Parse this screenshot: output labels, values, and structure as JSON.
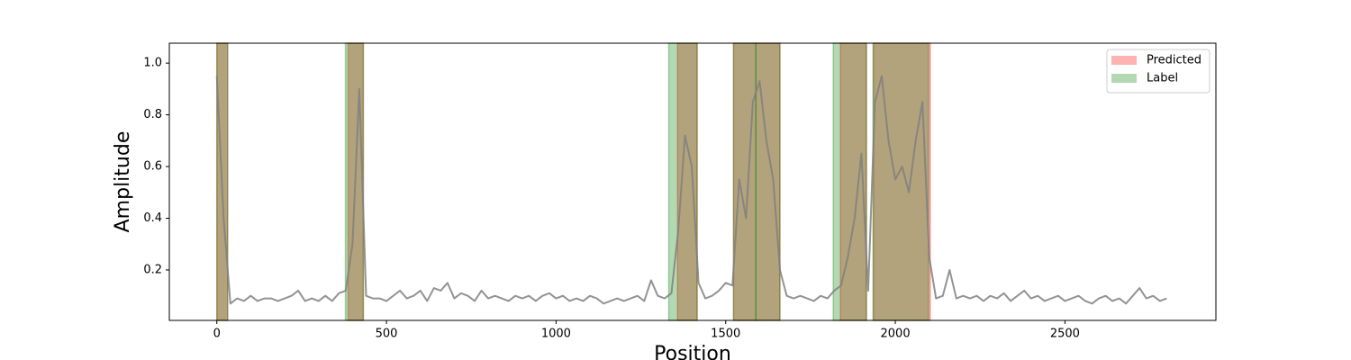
{
  "chart_data": {
    "type": "line",
    "xlabel": "Position",
    "ylabel": "Amplitude",
    "xlim": [
      -140,
      2945
    ],
    "ylim": [
      0.005,
      1.077
    ],
    "xticks": [
      0,
      500,
      1000,
      1500,
      2000,
      2500
    ],
    "yticks": [
      0.2,
      0.4,
      0.6,
      0.8,
      {
        "value": 1,
        "label": "1.0"
      }
    ],
    "legend": "upper right",
    "spans": [
      {
        "name": "Predicted",
        "color": "#ff0000",
        "alpha": 0.3,
        "ranges": [
          [
            0,
            32
          ],
          [
            387,
            432
          ],
          [
            1358,
            1416
          ],
          [
            1523,
            1660
          ],
          [
            1838,
            1915
          ],
          [
            1936,
            2103
          ]
        ]
      },
      {
        "name": "Label",
        "color": "#008000",
        "alpha": 0.3,
        "ranges": [
          [
            0,
            32
          ],
          [
            379,
            432
          ],
          [
            1332,
            1416
          ],
          [
            1523,
            1589
          ],
          [
            1589,
            1660
          ],
          [
            1817,
            1915
          ],
          [
            1934,
            2098
          ]
        ]
      }
    ],
    "line": {
      "color": "#808080",
      "alpha": 0.85,
      "x": [
        0,
        20,
        40,
        60,
        80,
        100,
        120,
        140,
        160,
        180,
        200,
        220,
        240,
        260,
        280,
        300,
        320,
        340,
        360,
        380,
        400,
        420,
        440,
        460,
        480,
        500,
        520,
        540,
        560,
        580,
        600,
        620,
        640,
        660,
        680,
        700,
        720,
        740,
        760,
        780,
        800,
        820,
        840,
        860,
        880,
        900,
        920,
        940,
        960,
        980,
        1000,
        1020,
        1040,
        1060,
        1080,
        1100,
        1120,
        1140,
        1160,
        1180,
        1200,
        1220,
        1240,
        1260,
        1280,
        1300,
        1320,
        1340,
        1360,
        1380,
        1400,
        1420,
        1440,
        1460,
        1480,
        1500,
        1520,
        1540,
        1560,
        1580,
        1600,
        1620,
        1640,
        1660,
        1680,
        1700,
        1720,
        1740,
        1760,
        1780,
        1800,
        1820,
        1840,
        1860,
        1880,
        1900,
        1920,
        1940,
        1960,
        1980,
        2000,
        2020,
        2040,
        2060,
        2080,
        2100,
        2120,
        2140,
        2160,
        2180,
        2200,
        2220,
        2240,
        2260,
        2280,
        2300,
        2320,
        2340,
        2360,
        2380,
        2400,
        2420,
        2440,
        2460,
        2480,
        2500,
        2520,
        2540,
        2560,
        2580,
        2600,
        2620,
        2640,
        2660,
        2680,
        2700,
        2720,
        2740,
        2760,
        2780,
        2800
      ],
      "values": [
        0.95,
        0.4,
        0.07,
        0.09,
        0.08,
        0.1,
        0.08,
        0.09,
        0.09,
        0.08,
        0.09,
        0.1,
        0.12,
        0.08,
        0.09,
        0.08,
        0.1,
        0.08,
        0.11,
        0.12,
        0.3,
        0.9,
        0.1,
        0.09,
        0.09,
        0.08,
        0.1,
        0.12,
        0.09,
        0.1,
        0.12,
        0.08,
        0.13,
        0.12,
        0.15,
        0.09,
        0.11,
        0.1,
        0.08,
        0.12,
        0.09,
        0.1,
        0.09,
        0.08,
        0.1,
        0.09,
        0.1,
        0.08,
        0.1,
        0.11,
        0.09,
        0.1,
        0.08,
        0.09,
        0.08,
        0.1,
        0.09,
        0.07,
        0.08,
        0.09,
        0.08,
        0.09,
        0.1,
        0.08,
        0.16,
        0.1,
        0.09,
        0.11,
        0.35,
        0.72,
        0.6,
        0.15,
        0.09,
        0.1,
        0.12,
        0.15,
        0.14,
        0.55,
        0.4,
        0.85,
        0.93,
        0.7,
        0.55,
        0.2,
        0.1,
        0.09,
        0.1,
        0.09,
        0.08,
        0.1,
        0.09,
        0.12,
        0.14,
        0.25,
        0.4,
        0.65,
        0.12,
        0.85,
        0.95,
        0.7,
        0.55,
        0.6,
        0.5,
        0.7,
        0.85,
        0.25,
        0.09,
        0.1,
        0.2,
        0.09,
        0.1,
        0.09,
        0.1,
        0.08,
        0.1,
        0.09,
        0.11,
        0.08,
        0.1,
        0.12,
        0.09,
        0.1,
        0.08,
        0.09,
        0.1,
        0.08,
        0.09,
        0.1,
        0.08,
        0.07,
        0.09,
        0.1,
        0.08,
        0.09,
        0.07,
        0.1,
        0.13,
        0.09,
        0.1,
        0.08,
        0.09
      ]
    }
  }
}
